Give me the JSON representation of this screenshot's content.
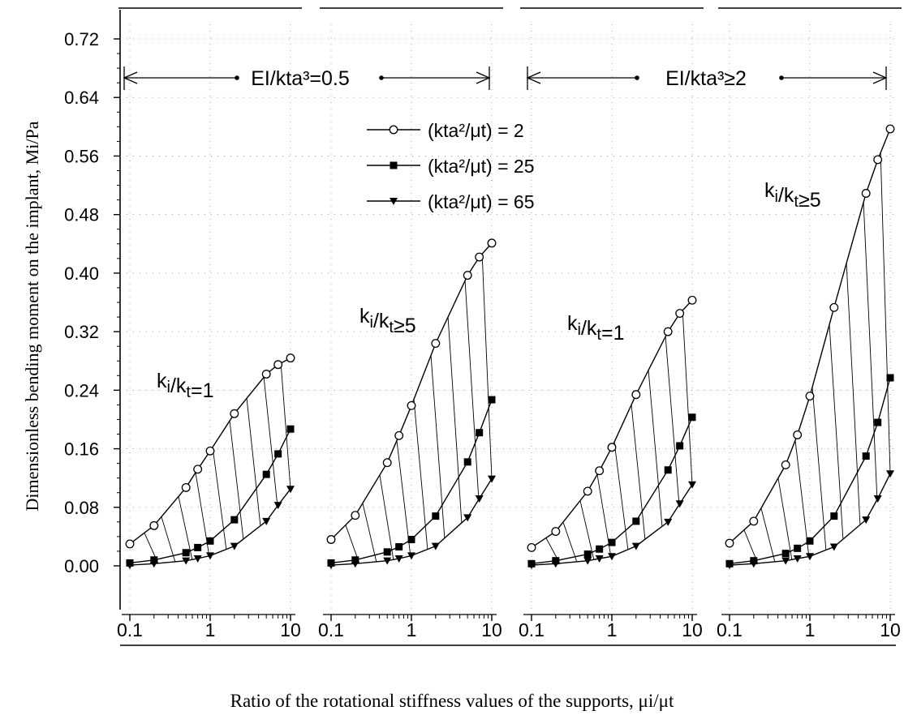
{
  "labels": {
    "ylabel": "Dimensionless bending moment on the implant, Mi/Pa",
    "xlabel": "Ratio of the rotational stiffness values of the supports, μi/μt",
    "group1": "EI/kta³=0.5",
    "group2": "EI/kta³≥2",
    "legend": [
      "(kta²/μt) = 2",
      "(kta²/μt) = 25",
      "(kta²/μt) = 65"
    ]
  },
  "chart_data": {
    "type": "line",
    "x_scale": "log",
    "xlim": [
      0.1,
      10
    ],
    "ylim": [
      0,
      0.72
    ],
    "y_ticks": [
      "0.00",
      "0.08",
      "0.16",
      "0.24",
      "0.32",
      "0.40",
      "0.48",
      "0.56",
      "0.64",
      "0.72"
    ],
    "x_ticks": [
      "0.1",
      "1",
      "10"
    ],
    "legend_position": "top-center",
    "colors": {
      "line": "#000000",
      "hatch": "#000000",
      "grid": "#888888"
    },
    "panels": [
      {
        "label": "ki/kt=1",
        "series": [
          {
            "marker": "open-circle",
            "x": [
              0.1,
              0.2,
              0.5,
              0.7,
              1,
              2,
              5,
              7,
              10
            ],
            "y": [
              0.03,
              0.055,
              0.107,
              0.132,
              0.157,
              0.208,
              0.262,
              0.275,
              0.284
            ]
          },
          {
            "marker": "filled-square",
            "x": [
              0.1,
              0.2,
              0.5,
              0.7,
              1,
              2,
              5,
              7,
              10
            ],
            "y": [
              0.004,
              0.008,
              0.018,
              0.025,
              0.034,
              0.063,
              0.125,
              0.153,
              0.187
            ]
          },
          {
            "marker": "filled-triangle-down",
            "x": [
              0.1,
              0.2,
              0.5,
              0.7,
              1,
              2,
              5,
              7,
              10
            ],
            "y": [
              0.001,
              0.003,
              0.007,
              0.01,
              0.014,
              0.027,
              0.061,
              0.083,
              0.105
            ]
          }
        ]
      },
      {
        "label": "ki/kt≥5",
        "series": [
          {
            "marker": "open-circle",
            "x": [
              0.1,
              0.2,
              0.5,
              0.7,
              1,
              2,
              5,
              7,
              10
            ],
            "y": [
              0.036,
              0.069,
              0.141,
              0.178,
              0.219,
              0.304,
              0.397,
              0.422,
              0.441
            ]
          },
          {
            "marker": "filled-square",
            "x": [
              0.1,
              0.2,
              0.5,
              0.7,
              1,
              2,
              5,
              7,
              10
            ],
            "y": [
              0.004,
              0.008,
              0.019,
              0.026,
              0.036,
              0.068,
              0.142,
              0.182,
              0.227
            ]
          },
          {
            "marker": "filled-triangle-down",
            "x": [
              0.1,
              0.2,
              0.5,
              0.7,
              1,
              2,
              5,
              7,
              10
            ],
            "y": [
              0.001,
              0.003,
              0.007,
              0.01,
              0.014,
              0.027,
              0.066,
              0.092,
              0.119
            ]
          }
        ]
      },
      {
        "label": "ki/kt=1",
        "series": [
          {
            "marker": "open-circle",
            "x": [
              0.1,
              0.2,
              0.5,
              0.7,
              1,
              2,
              5,
              7,
              10
            ],
            "y": [
              0.025,
              0.047,
              0.102,
              0.13,
              0.162,
              0.234,
              0.32,
              0.345,
              0.363
            ]
          },
          {
            "marker": "filled-square",
            "x": [
              0.1,
              0.2,
              0.5,
              0.7,
              1,
              2,
              5,
              7,
              10
            ],
            "y": [
              0.003,
              0.007,
              0.016,
              0.023,
              0.032,
              0.061,
              0.131,
              0.164,
              0.203
            ]
          },
          {
            "marker": "filled-triangle-down",
            "x": [
              0.1,
              0.2,
              0.5,
              0.7,
              1,
              2,
              5,
              7,
              10
            ],
            "y": [
              0.001,
              0.003,
              0.007,
              0.01,
              0.013,
              0.027,
              0.06,
              0.085,
              0.111
            ]
          }
        ]
      },
      {
        "label": "ki/kt≥5",
        "series": [
          {
            "marker": "open-circle",
            "x": [
              0.1,
              0.2,
              0.5,
              0.7,
              1,
              2,
              5,
              7,
              10
            ],
            "y": [
              0.031,
              0.061,
              0.138,
              0.179,
              0.232,
              0.353,
              0.509,
              0.555,
              0.597
            ]
          },
          {
            "marker": "filled-square",
            "x": [
              0.1,
              0.2,
              0.5,
              0.7,
              1,
              2,
              5,
              7,
              10
            ],
            "y": [
              0.003,
              0.007,
              0.017,
              0.024,
              0.034,
              0.068,
              0.15,
              0.196,
              0.257
            ]
          },
          {
            "marker": "filled-triangle-down",
            "x": [
              0.1,
              0.2,
              0.5,
              0.7,
              1,
              2,
              5,
              7,
              10
            ],
            "y": [
              0.001,
              0.003,
              0.007,
              0.01,
              0.013,
              0.026,
              0.063,
              0.092,
              0.126
            ]
          }
        ]
      }
    ]
  }
}
